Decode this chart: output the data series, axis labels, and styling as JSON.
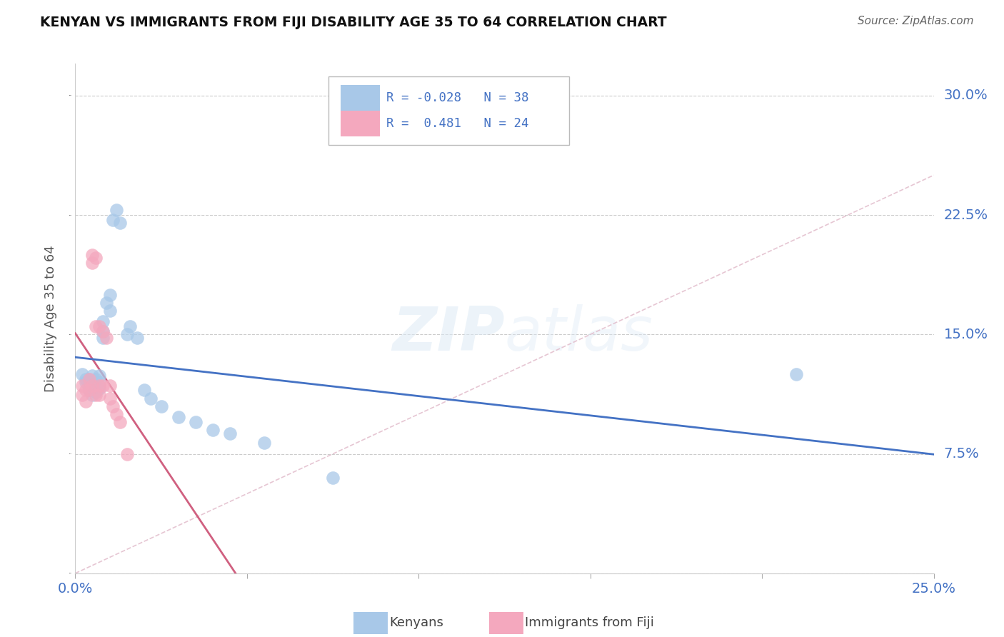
{
  "title": "KENYAN VS IMMIGRANTS FROM FIJI DISABILITY AGE 35 TO 64 CORRELATION CHART",
  "source": "Source: ZipAtlas.com",
  "ylabel": "Disability Age 35 to 64",
  "xlim": [
    0.0,
    0.25
  ],
  "ylim": [
    0.0,
    0.32
  ],
  "xticks": [
    0.0,
    0.05,
    0.1,
    0.15,
    0.2,
    0.25
  ],
  "yticks": [
    0.0,
    0.075,
    0.15,
    0.225,
    0.3
  ],
  "kenyan_R": -0.028,
  "kenyan_N": 38,
  "fiji_R": 0.481,
  "fiji_N": 24,
  "kenyan_color": "#a8c8e8",
  "fiji_color": "#f4a8be",
  "kenyan_line_color": "#4472c4",
  "fiji_line_color": "#d06080",
  "diagonal_color": "#e0b8c8",
  "legend_color": "#4472c4",
  "kenyan_x": [
    0.002,
    0.003,
    0.003,
    0.004,
    0.004,
    0.004,
    0.005,
    0.005,
    0.005,
    0.005,
    0.006,
    0.006,
    0.006,
    0.007,
    0.007,
    0.007,
    0.008,
    0.008,
    0.008,
    0.009,
    0.01,
    0.01,
    0.011,
    0.012,
    0.013,
    0.015,
    0.016,
    0.018,
    0.02,
    0.022,
    0.025,
    0.03,
    0.035,
    0.04,
    0.045,
    0.055,
    0.075,
    0.21
  ],
  "kenyan_y": [
    0.125,
    0.122,
    0.12,
    0.122,
    0.118,
    0.115,
    0.124,
    0.12,
    0.116,
    0.112,
    0.122,
    0.118,
    0.114,
    0.124,
    0.12,
    0.116,
    0.158,
    0.152,
    0.148,
    0.17,
    0.175,
    0.165,
    0.222,
    0.228,
    0.22,
    0.15,
    0.155,
    0.148,
    0.115,
    0.11,
    0.105,
    0.098,
    0.095,
    0.09,
    0.088,
    0.082,
    0.06,
    0.125
  ],
  "fiji_x": [
    0.002,
    0.002,
    0.003,
    0.003,
    0.004,
    0.004,
    0.005,
    0.005,
    0.005,
    0.006,
    0.006,
    0.006,
    0.007,
    0.007,
    0.007,
    0.008,
    0.008,
    0.009,
    0.01,
    0.01,
    0.011,
    0.012,
    0.013,
    0.015
  ],
  "fiji_y": [
    0.118,
    0.112,
    0.115,
    0.108,
    0.122,
    0.115,
    0.2,
    0.195,
    0.118,
    0.198,
    0.155,
    0.112,
    0.155,
    0.118,
    0.112,
    0.152,
    0.118,
    0.148,
    0.118,
    0.11,
    0.105,
    0.1,
    0.095,
    0.075
  ]
}
